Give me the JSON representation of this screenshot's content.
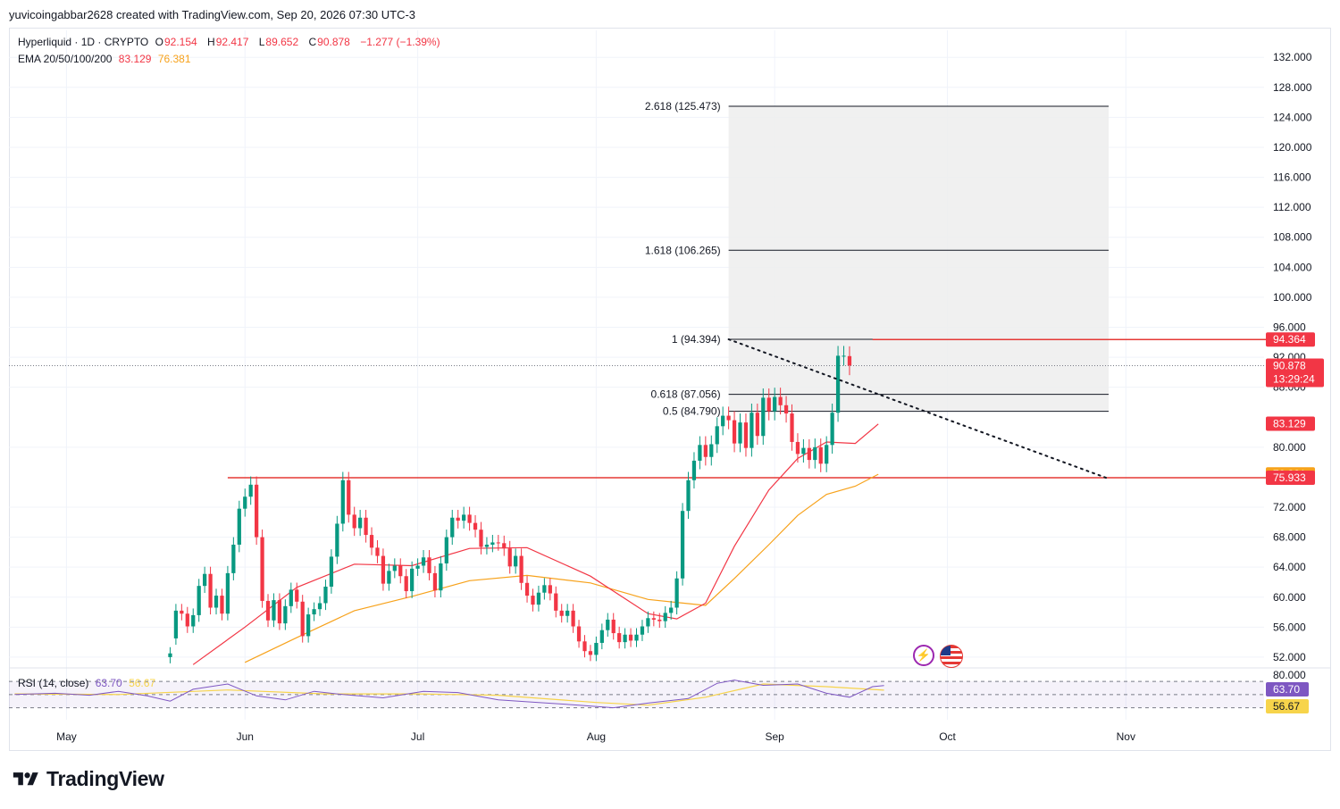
{
  "attribution": "yuvicoingabbar2628 created with TradingView.com, Sep 20, 2026 07:30 UTC-3",
  "legend": {
    "symbol": "Hyperliquid · 1D · CRYPTO",
    "open_label": "O",
    "open": "92.154",
    "high_label": "H",
    "high": "92.417",
    "low_label": "L",
    "low": "89.652",
    "close_label": "C",
    "close": "90.878",
    "change": "−1.277 (−1.39%)",
    "ema_label": "EMA 20/50/100/200",
    "ema20": "83.129",
    "ema50": "76.381",
    "rsi_label": "RSI (14, close)",
    "rsi_value": "63.70",
    "rsi_ma": "56.67"
  },
  "brand": {
    "name": "TradingView",
    "logo_icon": "tradingview-logo-icon"
  },
  "icons": {
    "bolt": "lightning-icon",
    "flag": "us-flag-icon"
  },
  "colors": {
    "up": "#089981",
    "down": "#f23645",
    "ema20": "#f23645",
    "ema50": "#f7a21b",
    "rsi": "#7e57c2",
    "rsi_ma": "#f7d44b",
    "resistance": "#e53935",
    "fib_zone": "#ededed"
  },
  "chart_data": {
    "type": "candlestick",
    "title": "Hyperliquid · 1D · CRYPTO",
    "y_axis": {
      "ticks": [
        52,
        56,
        60,
        64,
        68,
        72,
        80,
        88,
        92,
        96,
        100,
        104,
        108,
        112,
        116,
        120,
        124,
        128,
        132
      ],
      "tick_labels": [
        "52.000",
        "56.000",
        "60.000",
        "64.000",
        "68.000",
        "72.000",
        "80.000",
        "88.000",
        "92.000",
        "96.000",
        "100.000",
        "104.000",
        "108.000",
        "112.000",
        "116.000",
        "120.000",
        "124.000",
        "128.000",
        "132.000"
      ],
      "range": [
        50.8,
        135.6
      ],
      "position": "right"
    },
    "x_axis": {
      "labels": [
        "May",
        "Jun",
        "Jul",
        "Aug",
        "Sep",
        "Oct",
        "Nov"
      ],
      "label_dates": [
        "2026-05-01",
        "2026-06-01",
        "2026-07-01",
        "2026-08-01",
        "2026-09-01",
        "2026-10-01",
        "2026-11-01"
      ],
      "range": [
        "2026-04-21",
        "2026-11-25"
      ]
    },
    "grid": true,
    "candle_dates": {
      "first": "2026-05-19",
      "last": "2026-09-19",
      "interval": "1D"
    },
    "candles_close": [
      52.5,
      58.2,
      57.8,
      56.1,
      57.6,
      61.5,
      63.1,
      58.6,
      60.2,
      57.8,
      63.2,
      67.0,
      71.8,
      73.4,
      75.0,
      68.0,
      59.5,
      56.9,
      59.6,
      56.5,
      58.8,
      61.0,
      59.4,
      54.8,
      57.7,
      58.4,
      59.2,
      61.4,
      65.4,
      69.8,
      75.6,
      71.0,
      69.2,
      70.6,
      68.3,
      66.6,
      65.5,
      61.8,
      63.5,
      64.2,
      62.8,
      60.8,
      63.8,
      64.2,
      65.3,
      63.2,
      60.9,
      64.5,
      68.0,
      70.6,
      70.2,
      71.0,
      69.9,
      69.0,
      66.7,
      67.0,
      67.3,
      67.2,
      66.5,
      64.1,
      65.5,
      61.9,
      60.2,
      59.0,
      60.6,
      61.6,
      60.5,
      58.2,
      57.5,
      58.2,
      56.1,
      54.1,
      52.8,
      52.3,
      53.9,
      55.6,
      57.0,
      55.2,
      54.0,
      55.0,
      54.2,
      55.0,
      56.1,
      57.2,
      57.0,
      56.8,
      57.9,
      58.6,
      62.5,
      71.5,
      75.6,
      78.2,
      80.3,
      78.7,
      80.4,
      82.8,
      84.2,
      83.6,
      80.5,
      83.3,
      79.9,
      84.6,
      81.5,
      86.6,
      84.8,
      86.7,
      85.6,
      84.5,
      80.7,
      79.1,
      79.9,
      78.3,
      80.0,
      77.8,
      80.3,
      84.6,
      92.2,
      92.2,
      90.9
    ],
    "candles_open": [
      52.0,
      54.5,
      58.2,
      57.8,
      56.1,
      57.6,
      61.5,
      63.1,
      58.6,
      60.2,
      57.8,
      63.2,
      67.0,
      71.8,
      73.4,
      75.0,
      68.0,
      59.5,
      56.9,
      59.6,
      56.5,
      58.8,
      61.0,
      59.4,
      54.8,
      57.7,
      58.4,
      59.2,
      61.4,
      65.4,
      69.8,
      75.6,
      71.0,
      69.2,
      70.6,
      68.3,
      66.6,
      65.5,
      61.8,
      63.5,
      64.2,
      62.8,
      60.8,
      63.8,
      64.2,
      65.3,
      63.2,
      60.9,
      64.5,
      68.0,
      70.6,
      70.2,
      71.0,
      69.9,
      69.0,
      66.7,
      67.0,
      67.3,
      67.2,
      66.5,
      64.1,
      65.5,
      61.9,
      60.2,
      59.0,
      60.6,
      61.6,
      60.5,
      58.2,
      57.5,
      58.2,
      56.1,
      54.1,
      52.8,
      52.3,
      53.9,
      55.6,
      57.0,
      55.2,
      54.0,
      55.0,
      54.2,
      55.0,
      56.1,
      57.2,
      57.0,
      56.8,
      57.9,
      58.6,
      62.5,
      71.5,
      75.6,
      78.2,
      80.3,
      78.7,
      80.4,
      82.8,
      84.2,
      83.6,
      80.5,
      83.3,
      79.9,
      84.6,
      81.5,
      86.6,
      84.8,
      86.7,
      85.6,
      84.5,
      80.7,
      79.1,
      79.9,
      78.3,
      80.0,
      77.8,
      80.3,
      84.6,
      92.2,
      92.15
    ],
    "ema20": [
      [
        "2026-05-23",
        51.0
      ],
      [
        "2026-06-01",
        56.0
      ],
      [
        "2026-06-10",
        61.3
      ],
      [
        "2026-06-20",
        64.4
      ],
      [
        "2026-06-30",
        64.2
      ],
      [
        "2026-07-10",
        66.5
      ],
      [
        "2026-07-20",
        66.6
      ],
      [
        "2026-07-31",
        62.8
      ],
      [
        "2026-08-10",
        57.8
      ],
      [
        "2026-08-15",
        57.1
      ],
      [
        "2026-08-20",
        59.2
      ],
      [
        "2026-08-25",
        66.8
      ],
      [
        "2026-08-31",
        74.3
      ],
      [
        "2026-09-05",
        78.5
      ],
      [
        "2026-09-10",
        80.7
      ],
      [
        "2026-09-15",
        80.5
      ],
      [
        "2026-09-19",
        83.1
      ]
    ],
    "ema50": [
      [
        "2026-06-01",
        51.3
      ],
      [
        "2026-06-10",
        54.6
      ],
      [
        "2026-06-20",
        58.2
      ],
      [
        "2026-06-30",
        60.1
      ],
      [
        "2026-07-10",
        62.2
      ],
      [
        "2026-07-20",
        62.9
      ],
      [
        "2026-07-31",
        61.9
      ],
      [
        "2026-08-10",
        59.7
      ],
      [
        "2026-08-20",
        58.9
      ],
      [
        "2026-08-25",
        62.5
      ],
      [
        "2026-08-31",
        67.0
      ],
      [
        "2026-09-05",
        70.9
      ],
      [
        "2026-09-10",
        73.7
      ],
      [
        "2026-09-15",
        74.8
      ],
      [
        "2026-09-19",
        76.4
      ]
    ],
    "fibonacci": {
      "levels": [
        {
          "label": "2.618 (125.473)",
          "value": 125.473
        },
        {
          "label": "1.618 (106.265)",
          "value": 106.265
        },
        {
          "label": "1 (94.394)",
          "value": 94.394
        },
        {
          "label": "0.618 (87.056)",
          "value": 87.056
        },
        {
          "label": "0.5 (84.790)",
          "value": 84.79
        }
      ],
      "start_date": "2026-08-24",
      "end_date": "2026-10-29"
    },
    "horizontal_lines": [
      {
        "value": 94.364,
        "from_date": "2026-09-18"
      },
      {
        "value": 75.933,
        "from_date": "2026-05-29"
      }
    ],
    "trendline": {
      "from": [
        "2026-08-24",
        94.394
      ],
      "to": [
        "2026-10-29",
        75.8
      ],
      "style": "dotted"
    },
    "price_labels": [
      {
        "value": 94.364,
        "text": "94.364",
        "bg": "#f23645"
      },
      {
        "value": 90.878,
        "text": "90.878",
        "sub": "13:29:24",
        "bg": "#f23645"
      },
      {
        "value": 83.129,
        "text": "83.129",
        "bg": "#f23645"
      },
      {
        "value": 76.381,
        "text": "76.381",
        "bg": "#f7a21b"
      },
      {
        "value": 75.933,
        "text": "75.933",
        "bg": "#f23645"
      }
    ],
    "rsi": {
      "levels": [
        70,
        50,
        30
      ],
      "axis_label": "80.000",
      "value_labels": [
        {
          "text": "63.70",
          "bg": "#7e57c2"
        },
        {
          "text": "56.67",
          "bg": "#f7d44b"
        }
      ],
      "rsi_points": [
        [
          "2026-04-22",
          50
        ],
        [
          "2026-04-29",
          52
        ],
        [
          "2026-05-05",
          49
        ],
        [
          "2026-05-10",
          55
        ],
        [
          "2026-05-15",
          48
        ],
        [
          "2026-05-19",
          40
        ],
        [
          "2026-05-23",
          58
        ],
        [
          "2026-05-29",
          66
        ],
        [
          "2026-06-03",
          48
        ],
        [
          "2026-06-08",
          42
        ],
        [
          "2026-06-13",
          55
        ],
        [
          "2026-06-18",
          50
        ],
        [
          "2026-06-25",
          45
        ],
        [
          "2026-07-02",
          55
        ],
        [
          "2026-07-08",
          53
        ],
        [
          "2026-07-15",
          42
        ],
        [
          "2026-07-22",
          38
        ],
        [
          "2026-07-29",
          34
        ],
        [
          "2026-08-04",
          30
        ],
        [
          "2026-08-10",
          37
        ],
        [
          "2026-08-17",
          44
        ],
        [
          "2026-08-22",
          67
        ],
        [
          "2026-08-25",
          72
        ],
        [
          "2026-08-30",
          64
        ],
        [
          "2026-09-05",
          66
        ],
        [
          "2026-09-10",
          52
        ],
        [
          "2026-09-14",
          46
        ],
        [
          "2026-09-18",
          62
        ],
        [
          "2026-09-20",
          63.7
        ]
      ],
      "rsi_ma_points": [
        [
          "2026-04-22",
          51
        ],
        [
          "2026-05-10",
          50
        ],
        [
          "2026-05-29",
          57
        ],
        [
          "2026-06-15",
          51
        ],
        [
          "2026-07-01",
          51
        ],
        [
          "2026-07-15",
          49
        ],
        [
          "2026-08-01",
          38
        ],
        [
          "2026-08-10",
          34
        ],
        [
          "2026-08-20",
          46
        ],
        [
          "2026-08-30",
          66
        ],
        [
          "2026-09-10",
          62
        ],
        [
          "2026-09-20",
          56.67
        ]
      ]
    }
  }
}
